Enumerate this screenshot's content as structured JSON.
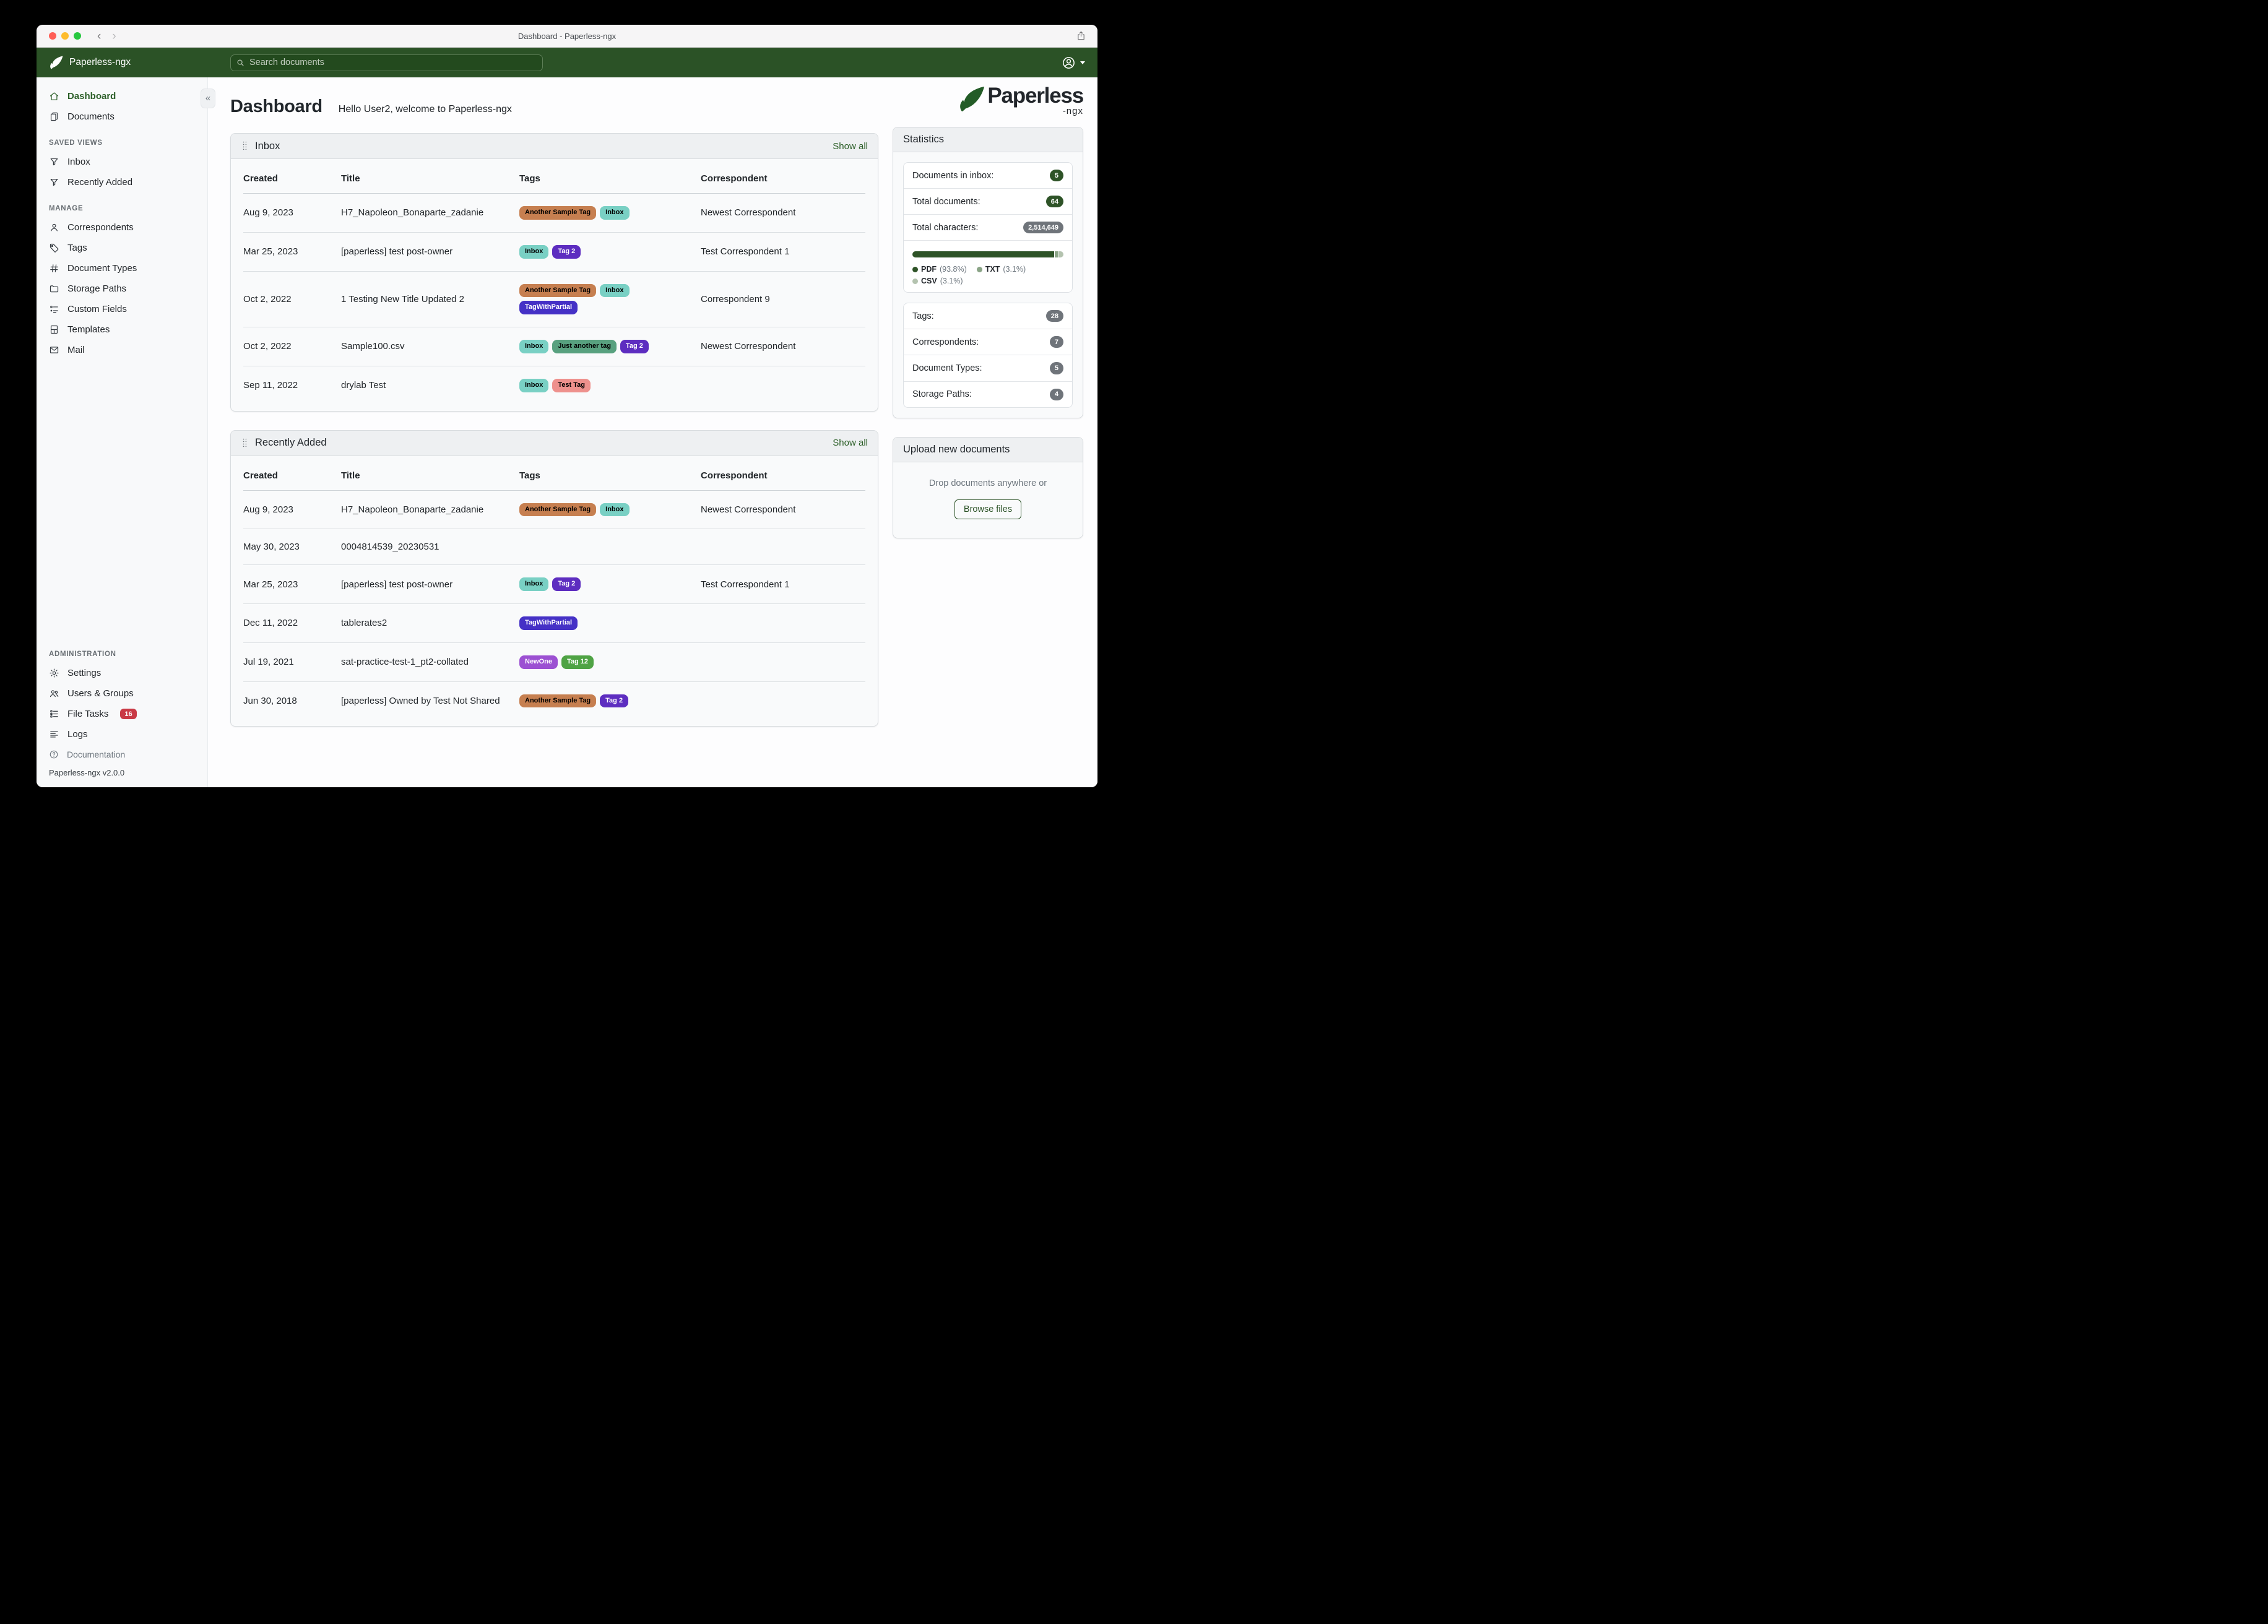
{
  "window": {
    "title": "Dashboard - Paperless-ngx"
  },
  "navbar": {
    "brand": "Paperless-ngx",
    "search_placeholder": "Search documents"
  },
  "sidebar": {
    "primary": [
      {
        "label": "Dashboard",
        "icon": "house",
        "active": true
      },
      {
        "label": "Documents",
        "icon": "files",
        "active": false
      }
    ],
    "sections": [
      {
        "label": "SAVED VIEWS",
        "bottom": false,
        "items": [
          {
            "label": "Inbox",
            "icon": "funnel"
          },
          {
            "label": "Recently Added",
            "icon": "funnel"
          }
        ]
      },
      {
        "label": "MANAGE",
        "bottom": false,
        "items": [
          {
            "label": "Correspondents",
            "icon": "person"
          },
          {
            "label": "Tags",
            "icon": "tag"
          },
          {
            "label": "Document Types",
            "icon": "hash"
          },
          {
            "label": "Storage Paths",
            "icon": "folder"
          },
          {
            "label": "Custom Fields",
            "icon": "fields"
          },
          {
            "label": "Templates",
            "icon": "templates"
          },
          {
            "label": "Mail",
            "icon": "mail"
          }
        ]
      },
      {
        "label": "ADMINISTRATION",
        "bottom": true,
        "items": [
          {
            "label": "Settings",
            "icon": "gear"
          },
          {
            "label": "Users & Groups",
            "icon": "people"
          },
          {
            "label": "File Tasks",
            "icon": "listtask",
            "badge": "16"
          },
          {
            "label": "Logs",
            "icon": "textleft"
          }
        ]
      }
    ],
    "documentation_label": "Documentation",
    "version": "Paperless-ngx v2.0.0"
  },
  "header": {
    "title": "Dashboard",
    "subtitle": "Hello User2, welcome to Paperless-ngx"
  },
  "logo": {
    "text": "Paperless",
    "suffix": "-ngx"
  },
  "tag_palette": {
    "Another Sample Tag": {
      "bg": "#c67f50",
      "fg": "#000000"
    },
    "Inbox": {
      "bg": "#79d0c4",
      "fg": "#000000"
    },
    "Tag 2": {
      "bg": "#5d2dc0",
      "fg": "#ffffff"
    },
    "TagWithPartial": {
      "bg": "#4531c6",
      "fg": "#ffffff"
    },
    "Just another tag": {
      "bg": "#58a17f",
      "fg": "#000000"
    },
    "Test Tag": {
      "bg": "#ee918d",
      "fg": "#000000"
    },
    "NewOne": {
      "bg": "#9c50d2",
      "fg": "#ffffff"
    },
    "Tag 12": {
      "bg": "#4fa344",
      "fg": "#ffffff"
    }
  },
  "saved_views": [
    {
      "title": "Inbox",
      "show_all": "Show all",
      "columns": [
        "Created",
        "Title",
        "Tags",
        "Correspondent"
      ],
      "rows": [
        {
          "created": "Aug 9, 2023",
          "title": "H7_Napoleon_Bonaparte_zadanie",
          "tags": [
            "Another Sample Tag",
            "Inbox"
          ],
          "correspondent": "Newest Correspondent"
        },
        {
          "created": "Mar 25, 2023",
          "title": "[paperless] test post-owner",
          "tags": [
            "Inbox",
            "Tag 2"
          ],
          "correspondent": "Test Correspondent 1"
        },
        {
          "created": "Oct 2, 2022",
          "title": "1 Testing New Title Updated 2",
          "tags": [
            "Another Sample Tag",
            "Inbox",
            "TagWithPartial"
          ],
          "correspondent": "Correspondent 9"
        },
        {
          "created": "Oct 2, 2022",
          "title": "Sample100.csv",
          "tags": [
            "Inbox",
            "Just another tag",
            "Tag 2"
          ],
          "correspondent": "Newest Correspondent"
        },
        {
          "created": "Sep 11, 2022",
          "title": "drylab Test",
          "tags": [
            "Inbox",
            "Test Tag"
          ],
          "correspondent": ""
        }
      ]
    },
    {
      "title": "Recently Added",
      "show_all": "Show all",
      "columns": [
        "Created",
        "Title",
        "Tags",
        "Correspondent"
      ],
      "rows": [
        {
          "created": "Aug 9, 2023",
          "title": "H7_Napoleon_Bonaparte_zadanie",
          "tags": [
            "Another Sample Tag",
            "Inbox"
          ],
          "correspondent": "Newest Correspondent"
        },
        {
          "created": "May 30, 2023",
          "title": "0004814539_20230531",
          "tags": [],
          "correspondent": ""
        },
        {
          "created": "Mar 25, 2023",
          "title": "[paperless] test post-owner",
          "tags": [
            "Inbox",
            "Tag 2"
          ],
          "correspondent": "Test Correspondent 1"
        },
        {
          "created": "Dec 11, 2022",
          "title": "tablerates2",
          "tags": [
            "TagWithPartial"
          ],
          "correspondent": ""
        },
        {
          "created": "Jul 19, 2021",
          "title": "sat-practice-test-1_pt2-collated",
          "tags": [
            "NewOne",
            "Tag 12"
          ],
          "correspondent": ""
        },
        {
          "created": "Jun 30, 2018",
          "title": "[paperless] Owned by Test Not Shared",
          "tags": [
            "Another Sample Tag",
            "Tag 2"
          ],
          "correspondent": ""
        }
      ]
    }
  ],
  "statistics": {
    "title": "Statistics",
    "rows": [
      {
        "label": "Documents in inbox:",
        "value": "5",
        "pill": "green"
      },
      {
        "label": "Total documents:",
        "value": "64",
        "pill": "green"
      },
      {
        "label": "Total characters:",
        "value": "2,514,649",
        "pill": "gray"
      }
    ],
    "file_types": [
      {
        "label": "PDF",
        "pct": "(93.8%)",
        "value": 93.8,
        "color": "#2e5327"
      },
      {
        "label": "TXT",
        "pct": "(3.1%)",
        "value": 3.1,
        "color": "#8aa486"
      },
      {
        "label": "CSV",
        "pct": "(3.1%)",
        "value": 3.1,
        "color": "#b4c3af"
      }
    ],
    "counts": [
      {
        "label": "Tags:",
        "value": "28"
      },
      {
        "label": "Correspondents:",
        "value": "7"
      },
      {
        "label": "Document Types:",
        "value": "5"
      },
      {
        "label": "Storage Paths:",
        "value": "4"
      }
    ]
  },
  "upload": {
    "title": "Upload new documents",
    "hint": "Drop documents anywhere or",
    "button": "Browse files"
  }
}
